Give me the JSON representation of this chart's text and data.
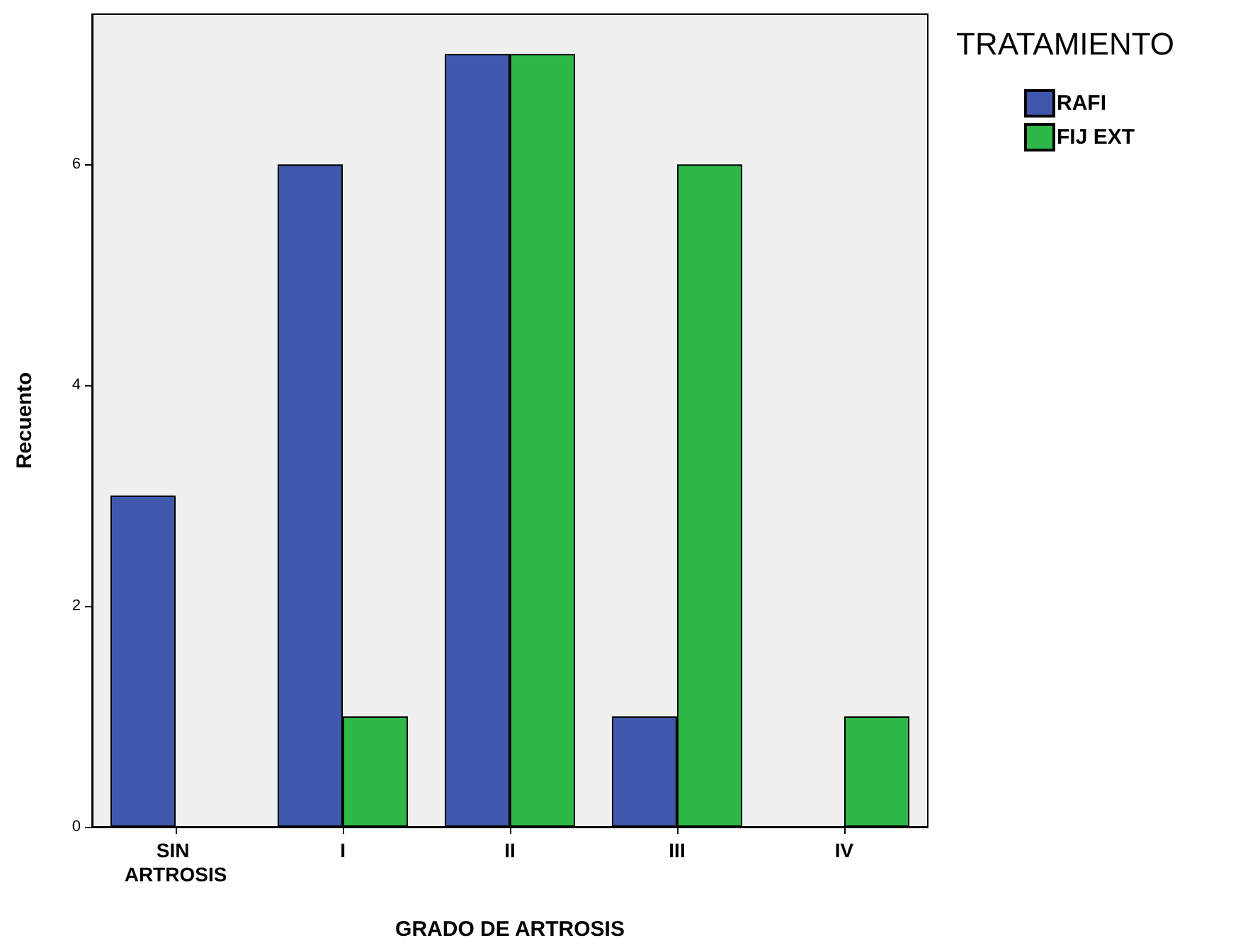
{
  "chart_data": {
    "type": "bar",
    "xlabel": "GRADO DE ARTROSIS",
    "ylabel": "Recuento",
    "legend_title": "TRATAMIENTO",
    "categories": [
      "SIN ARTROSIS",
      "I",
      "II",
      "III",
      "IV"
    ],
    "series": [
      {
        "name": "RAFI",
        "color": "#3e58ac",
        "values": [
          3,
          6,
          7,
          1,
          0
        ]
      },
      {
        "name": "FIJ EXT",
        "color": "#2eb848",
        "values": [
          0,
          1,
          7,
          6,
          1
        ]
      }
    ],
    "ylim": [
      0,
      7.36
    ],
    "yticks": [
      0,
      2,
      4,
      6
    ],
    "grid": false,
    "legend": "top right"
  }
}
